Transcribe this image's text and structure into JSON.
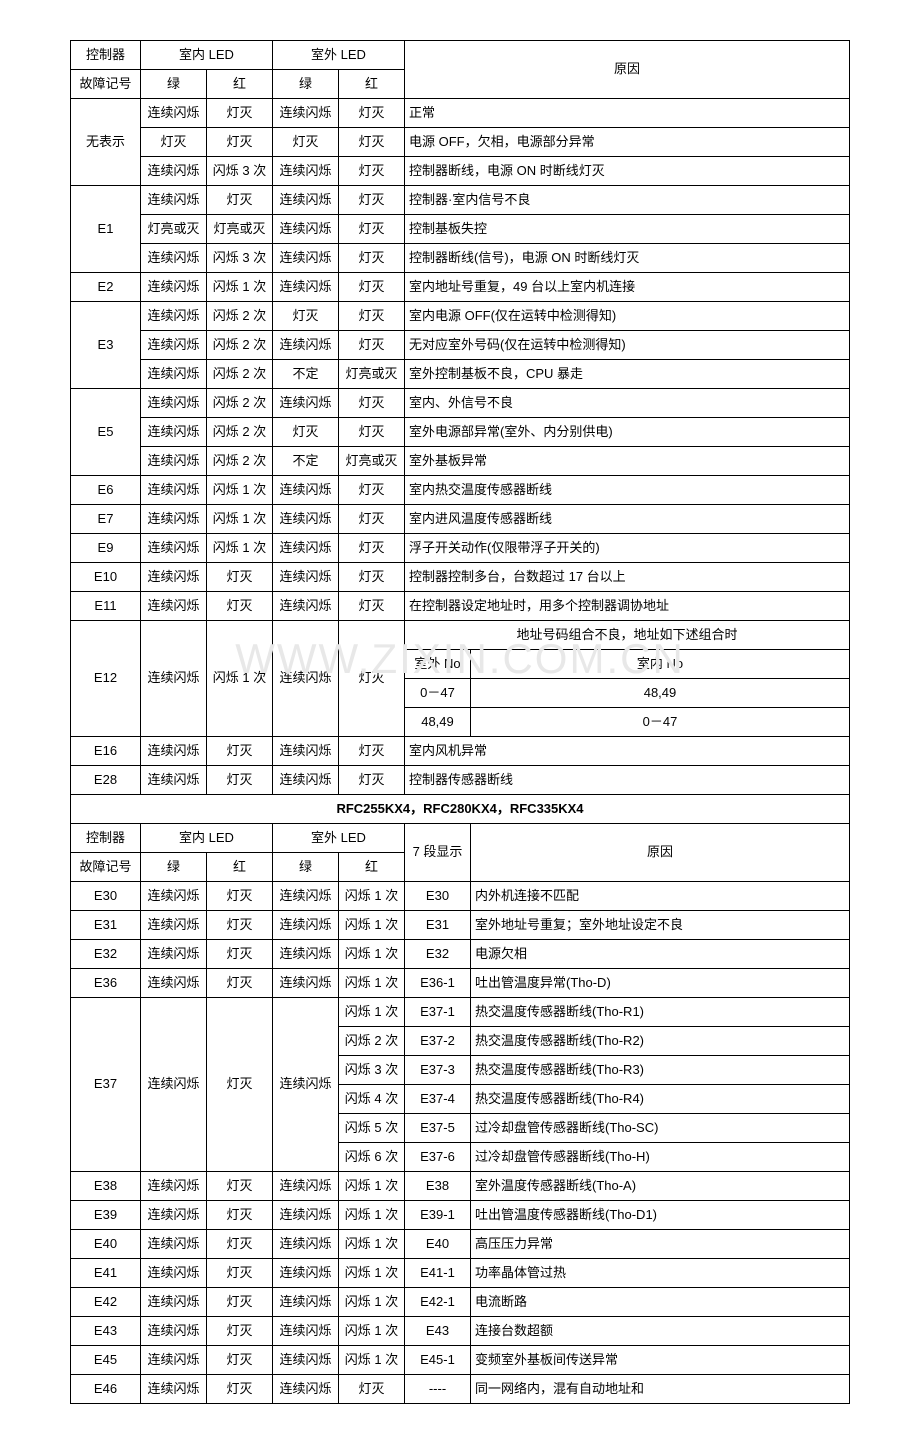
{
  "watermark": "WWW.ZIXIN.COM.CN",
  "headers": {
    "controller": "控制器",
    "fault_code": "故障记号",
    "indoor_led": "室内 LED",
    "outdoor_led": "室外 LED",
    "green": "绿",
    "red": "红",
    "reason": "原因",
    "seg7": "7 段显示"
  },
  "col_widths": {
    "c1": 70,
    "c2": 66,
    "c3": 66,
    "c4": 66,
    "c5": 66,
    "c6": 66,
    "reason_full": 380
  },
  "rows1": [
    {
      "code": "无表示",
      "span": 3,
      "cells": [
        [
          "连续闪烁",
          "灯灭",
          "连续闪烁",
          "灯灭",
          "正常"
        ],
        [
          "灯灭",
          "灯灭",
          "灯灭",
          "灯灭",
          "电源 OFF，欠相，电源部分异常"
        ],
        [
          "连续闪烁",
          "闪烁 3 次",
          "连续闪烁",
          "灯灭",
          "控制器断线，电源 ON 时断线灯灭"
        ]
      ]
    },
    {
      "code": "E1",
      "span": 3,
      "cells": [
        [
          "连续闪烁",
          "灯灭",
          "连续闪烁",
          "灯灭",
          "控制器·室内信号不良"
        ],
        [
          "灯亮或灭",
          "灯亮或灭",
          "连续闪烁",
          "灯灭",
          "控制基板失控"
        ],
        [
          "连续闪烁",
          "闪烁 3 次",
          "连续闪烁",
          "灯灭",
          "控制器断线(信号)，电源 ON 时断线灯灭"
        ]
      ]
    },
    {
      "code": "E2",
      "span": 1,
      "cells": [
        [
          "连续闪烁",
          "闪烁 1 次",
          "连续闪烁",
          "灯灭",
          "室内地址号重复，49 台以上室内机连接"
        ]
      ]
    },
    {
      "code": "E3",
      "span": 3,
      "cells": [
        [
          "连续闪烁",
          "闪烁 2 次",
          "灯灭",
          "灯灭",
          "室内电源 OFF(仅在运转中检测得知)"
        ],
        [
          "连续闪烁",
          "闪烁 2 次",
          "连续闪烁",
          "灯灭",
          "无对应室外号码(仅在运转中检测得知)"
        ],
        [
          "连续闪烁",
          "闪烁 2 次",
          "不定",
          "灯亮或灭",
          "室外控制基板不良，CPU 暴走"
        ]
      ]
    },
    {
      "code": "E5",
      "span": 3,
      "cells": [
        [
          "连续闪烁",
          "闪烁 2 次",
          "连续闪烁",
          "灯灭",
          "室内、外信号不良"
        ],
        [
          "连续闪烁",
          "闪烁 2 次",
          "灯灭",
          "灯灭",
          "室外电源部异常(室外、内分别供电)"
        ],
        [
          "连续闪烁",
          "闪烁 2 次",
          "不定",
          "灯亮或灭",
          "室外基板异常"
        ]
      ]
    },
    {
      "code": "E6",
      "span": 1,
      "cells": [
        [
          "连续闪烁",
          "闪烁 1 次",
          "连续闪烁",
          "灯灭",
          "室内热交温度传感器断线"
        ]
      ]
    },
    {
      "code": "E7",
      "span": 1,
      "cells": [
        [
          "连续闪烁",
          "闪烁 1 次",
          "连续闪烁",
          "灯灭",
          "室内进风温度传感器断线"
        ]
      ]
    },
    {
      "code": "E9",
      "span": 1,
      "cells": [
        [
          "连续闪烁",
          "闪烁 1 次",
          "连续闪烁",
          "灯灭",
          "浮子开关动作(仅限带浮子开关的)"
        ]
      ]
    },
    {
      "code": "E10",
      "span": 1,
      "cells": [
        [
          "连续闪烁",
          "灯灭",
          "连续闪烁",
          "灯灭",
          "控制器控制多台，台数超过 17 台以上"
        ]
      ]
    },
    {
      "code": "E11",
      "span": 1,
      "cells": [
        [
          "连续闪烁",
          "灯灭",
          "连续闪烁",
          "灯灭",
          "在控制器设定地址时，用多个控制器调协地址"
        ]
      ]
    }
  ],
  "e12": {
    "code": "E12",
    "c2": "连续闪烁",
    "c3": "闪烁 1 次",
    "c4": "连续闪烁",
    "c5": "灯灭",
    "line1": "地址号码组合不良，地址如下述组合时",
    "hdr_out": "室外 No",
    "hdr_in": "室内 No",
    "r1a": "0－47",
    "r1b": "48,49",
    "r2a": "48,49",
    "r2b": "0－47"
  },
  "rows1b": [
    {
      "code": "E16",
      "c": [
        "连续闪烁",
        "灯灭",
        "连续闪烁",
        "灯灭",
        "室内风机异常"
      ]
    },
    {
      "code": "E28",
      "c": [
        "连续闪烁",
        "灯灭",
        "连续闪烁",
        "灯灭",
        "控制器传感器断线"
      ]
    }
  ],
  "section2_title": "RFC255KX4，RFC280KX4，RFC335KX4",
  "rows2_simple": [
    [
      "E30",
      "连续闪烁",
      "灯灭",
      "连续闪烁",
      "闪烁 1 次",
      "E30",
      "内外机连接不匹配"
    ],
    [
      "E31",
      "连续闪烁",
      "灯灭",
      "连续闪烁",
      "闪烁 1 次",
      "E31",
      "室外地址号重复；室外地址设定不良"
    ],
    [
      "E32",
      "连续闪烁",
      "灯灭",
      "连续闪烁",
      "闪烁 1 次",
      "E32",
      "电源欠相"
    ],
    [
      "E36",
      "连续闪烁",
      "灯灭",
      "连续闪烁",
      "闪烁 1 次",
      "E36-1",
      "吐出管温度异常(Tho-D)"
    ]
  ],
  "e37": {
    "code": "E37",
    "c2": "连续闪烁",
    "c3": "灯灭",
    "c4": "连续闪烁",
    "sub": [
      [
        "闪烁 1 次",
        "E37-1",
        "热交温度传感器断线(Tho-R1)"
      ],
      [
        "闪烁 2 次",
        "E37-2",
        "热交温度传感器断线(Tho-R2)"
      ],
      [
        "闪烁 3 次",
        "E37-3",
        "热交温度传感器断线(Tho-R3)"
      ],
      [
        "闪烁 4 次",
        "E37-4",
        "热交温度传感器断线(Tho-R4)"
      ],
      [
        "闪烁 5 次",
        "E37-5",
        "过冷却盘管传感器断线(Tho-SC)"
      ],
      [
        "闪烁 6 次",
        "E37-6",
        "过冷却盘管传感器断线(Tho-H)"
      ]
    ]
  },
  "rows2_after": [
    [
      "E38",
      "连续闪烁",
      "灯灭",
      "连续闪烁",
      "闪烁 1 次",
      "E38",
      "室外温度传感器断线(Tho-A)"
    ],
    [
      "E39",
      "连续闪烁",
      "灯灭",
      "连续闪烁",
      "闪烁 1 次",
      "E39-1",
      "吐出管温度传感器断线(Tho-D1)"
    ],
    [
      "E40",
      "连续闪烁",
      "灯灭",
      "连续闪烁",
      "闪烁 1 次",
      "E40",
      "高压压力异常"
    ],
    [
      "E41",
      "连续闪烁",
      "灯灭",
      "连续闪烁",
      "闪烁 1 次",
      "E41-1",
      "功率晶体管过热"
    ],
    [
      "E42",
      "连续闪烁",
      "灯灭",
      "连续闪烁",
      "闪烁 1 次",
      "E42-1",
      "电流断路"
    ],
    [
      "E43",
      "连续闪烁",
      "灯灭",
      "连续闪烁",
      "闪烁 1 次",
      "E43",
      "连接台数超额"
    ],
    [
      "E45",
      "连续闪烁",
      "灯灭",
      "连续闪烁",
      "闪烁 1 次",
      "E45-1",
      "变频室外基板间传送异常"
    ],
    [
      "E46",
      "连续闪烁",
      "灯灭",
      "连续闪烁",
      "灯灭",
      "----",
      "同一网络内，混有自动地址和"
    ]
  ]
}
